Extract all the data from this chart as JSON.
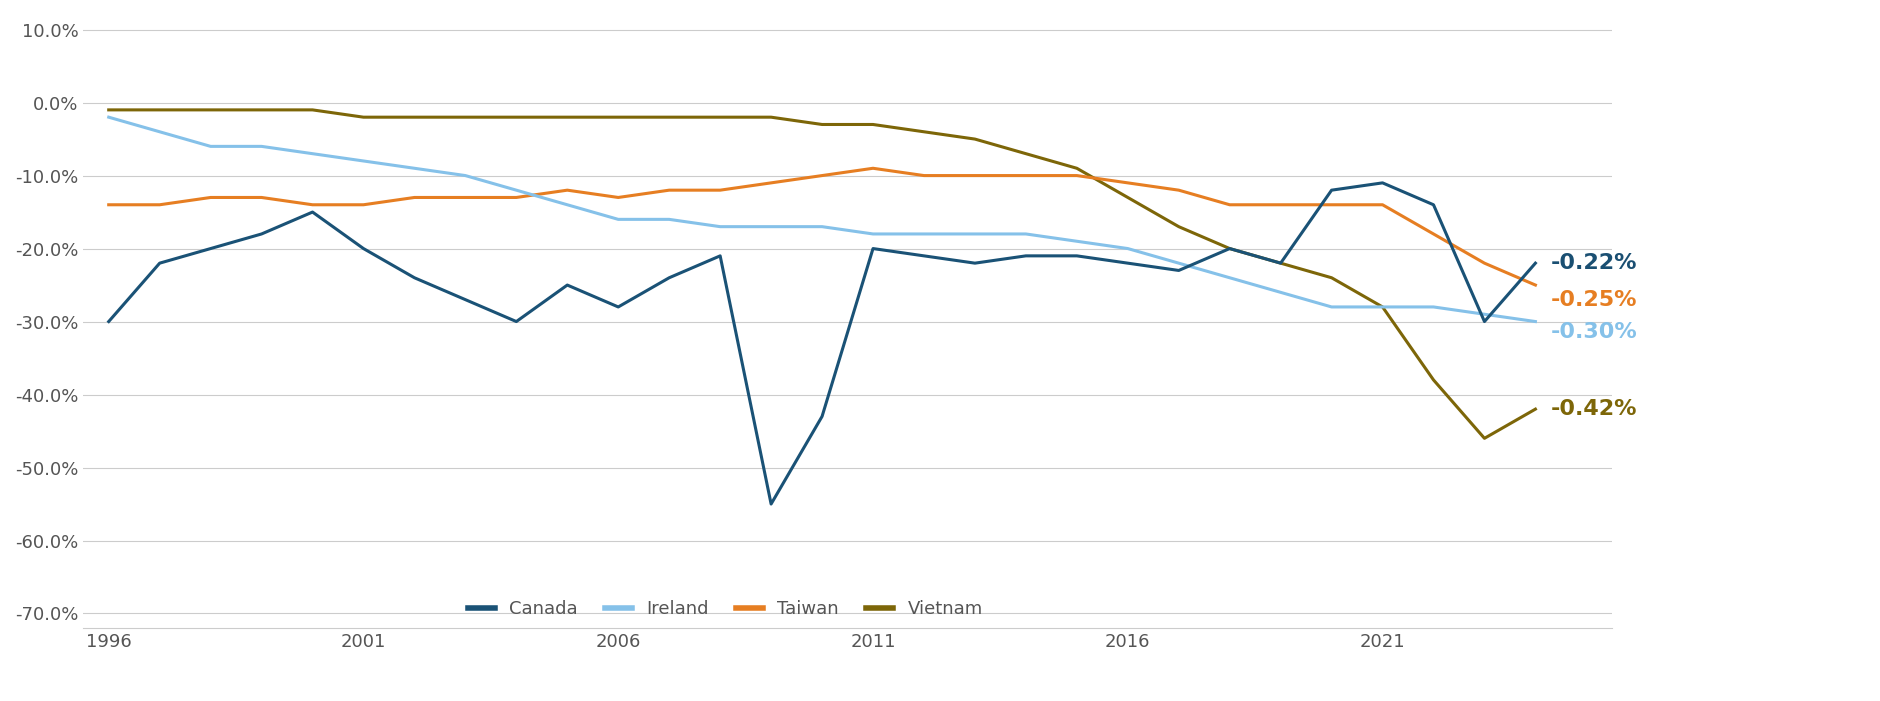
{
  "title": "",
  "colors": {
    "canada": "#1a5276",
    "ireland": "#85c1e9",
    "taiwan": "#e67e22",
    "vietnam": "#7d6608"
  },
  "legend_labels": [
    "Canada",
    "Ireland",
    "Taiwan",
    "Vietnam"
  ],
  "end_labels": {
    "canada": "-0.22%",
    "taiwan": "-0.25%",
    "ireland": "-0.30%",
    "vietnam": "-0.42%"
  },
  "end_label_colors": {
    "canada": "#1a4f72",
    "taiwan": "#e67e22",
    "ireland": "#85c1e9",
    "vietnam": "#7d6608"
  },
  "ylim": [
    -0.72,
    0.12
  ],
  "yticks": [
    0.1,
    0.0,
    -0.1,
    -0.2,
    -0.3,
    -0.4,
    -0.5,
    -0.6,
    -0.7
  ],
  "xticks": [
    1996,
    2001,
    2006,
    2011,
    2016,
    2021
  ],
  "background_color": "#ffffff",
  "grid_color": "#cccccc",
  "tick_color": "#555555",
  "linewidth": 2.2,
  "canada": {
    "years": [
      1996,
      1997,
      1998,
      1999,
      2000,
      2001,
      2002,
      2003,
      2004,
      2005,
      2006,
      2007,
      2008,
      2009,
      2010,
      2011,
      2012,
      2013,
      2014,
      2015,
      2016,
      2017,
      2018,
      2019,
      2020,
      2021,
      2022,
      2023,
      2024
    ],
    "values": [
      -0.3,
      -0.22,
      -0.2,
      -0.18,
      -0.15,
      -0.2,
      -0.24,
      -0.27,
      -0.3,
      -0.25,
      -0.28,
      -0.24,
      -0.21,
      -0.55,
      -0.43,
      -0.2,
      -0.21,
      -0.22,
      -0.21,
      -0.21,
      -0.22,
      -0.23,
      -0.2,
      -0.22,
      -0.12,
      -0.11,
      -0.14,
      -0.3,
      -0.22
    ]
  },
  "ireland": {
    "years": [
      1996,
      1997,
      1998,
      1999,
      2000,
      2001,
      2002,
      2003,
      2004,
      2005,
      2006,
      2007,
      2008,
      2009,
      2010,
      2011,
      2012,
      2013,
      2014,
      2015,
      2016,
      2017,
      2018,
      2019,
      2020,
      2021,
      2022,
      2023,
      2024
    ],
    "values": [
      -0.02,
      -0.04,
      -0.06,
      -0.06,
      -0.07,
      -0.08,
      -0.09,
      -0.1,
      -0.12,
      -0.14,
      -0.16,
      -0.16,
      -0.17,
      -0.17,
      -0.17,
      -0.18,
      -0.18,
      -0.18,
      -0.18,
      -0.19,
      -0.2,
      -0.22,
      -0.24,
      -0.26,
      -0.28,
      -0.28,
      -0.28,
      -0.29,
      -0.3
    ]
  },
  "taiwan": {
    "years": [
      1996,
      1997,
      1998,
      1999,
      2000,
      2001,
      2002,
      2003,
      2004,
      2005,
      2006,
      2007,
      2008,
      2009,
      2010,
      2011,
      2012,
      2013,
      2014,
      2015,
      2016,
      2017,
      2018,
      2019,
      2020,
      2021,
      2022,
      2023,
      2024
    ],
    "values": [
      -0.14,
      -0.14,
      -0.13,
      -0.13,
      -0.14,
      -0.14,
      -0.13,
      -0.13,
      -0.13,
      -0.12,
      -0.13,
      -0.12,
      -0.12,
      -0.11,
      -0.1,
      -0.09,
      -0.1,
      -0.1,
      -0.1,
      -0.1,
      -0.11,
      -0.12,
      -0.14,
      -0.14,
      -0.14,
      -0.14,
      -0.18,
      -0.22,
      -0.25
    ]
  },
  "vietnam": {
    "years": [
      1996,
      1997,
      1998,
      1999,
      2000,
      2001,
      2002,
      2003,
      2004,
      2005,
      2006,
      2007,
      2008,
      2009,
      2010,
      2011,
      2012,
      2013,
      2014,
      2015,
      2016,
      2017,
      2018,
      2019,
      2020,
      2021,
      2022,
      2023,
      2024
    ],
    "values": [
      -0.01,
      -0.01,
      -0.01,
      -0.01,
      -0.01,
      -0.02,
      -0.02,
      -0.02,
      -0.02,
      -0.02,
      -0.02,
      -0.02,
      -0.02,
      -0.02,
      -0.03,
      -0.03,
      -0.04,
      -0.05,
      -0.07,
      -0.09,
      -0.13,
      -0.17,
      -0.2,
      -0.22,
      -0.24,
      -0.28,
      -0.38,
      -0.46,
      -0.42
    ]
  }
}
